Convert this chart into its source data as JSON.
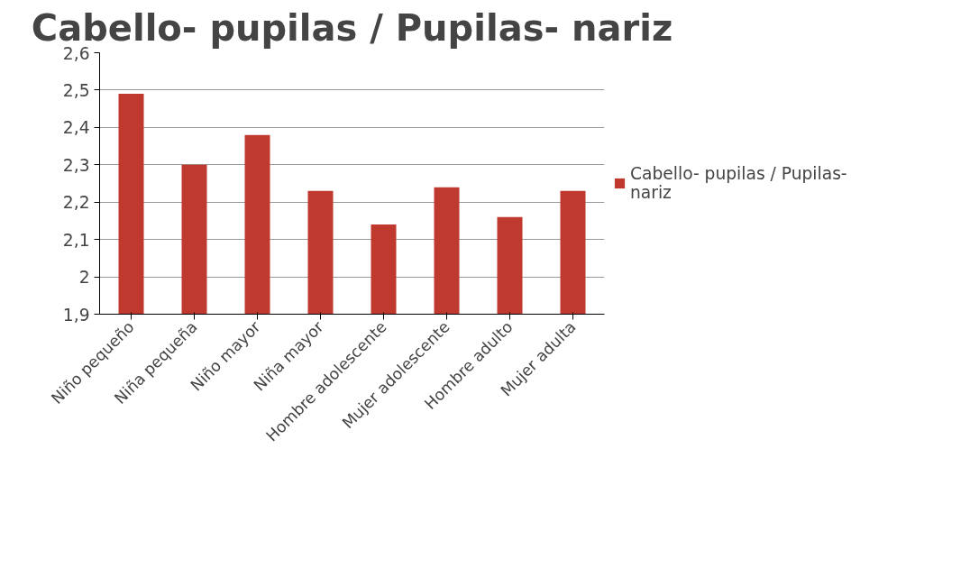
{
  "chart_data": {
    "type": "bar",
    "title": "Cabello- pupilas / Pupilas- nariz",
    "categories": [
      "Niño pequeño",
      "Niña pequeña",
      "Niño mayor",
      "Niña mayor",
      "Hombre adolescente",
      "Mujer adolescente",
      "Hombre adulto",
      "Mujer adulta"
    ],
    "series": [
      {
        "name": "Cabello- pupilas / Pupilas- nariz",
        "color": "#c0392f",
        "values": [
          2.49,
          2.3,
          2.38,
          2.23,
          2.14,
          2.24,
          2.16,
          2.23
        ]
      }
    ],
    "ylim": [
      1.9,
      2.6
    ],
    "yticks": [
      {
        "value": 1.9,
        "label": "1,9"
      },
      {
        "value": 2,
        "label": "2"
      },
      {
        "value": 2.1,
        "label": "2,1"
      },
      {
        "value": 2.2,
        "label": "2,2"
      },
      {
        "value": 2.3,
        "label": "2,3"
      },
      {
        "value": 2.4,
        "label": "2,4"
      },
      {
        "value": 2.5,
        "label": "2,5"
      },
      {
        "value": 2.6,
        "label": "2,6"
      }
    ],
    "grid": "y",
    "legend": "right"
  }
}
